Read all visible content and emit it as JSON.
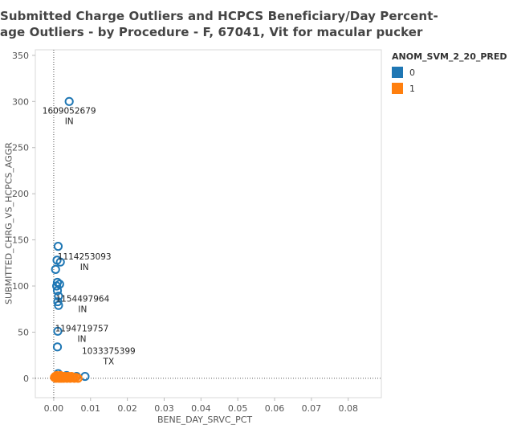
{
  "title_lines": [
    "Submitted Charge Outliers and HCPCS Beneficiary/Day Percent-",
    "age Outliers - by Procedure - F, 67041, Vit for macular pucker"
  ],
  "legend": {
    "title": "ANOM_SVM_2_20_PRED",
    "items": [
      {
        "label": "0",
        "color": "#1f77b4"
      },
      {
        "label": "1",
        "color": "#ff7f0e"
      }
    ]
  },
  "chart_data": {
    "type": "scatter",
    "xlabel": "BENE_DAY_SRVC_PCT",
    "ylabel": "SUBMITTED_CHRG_VS_HCPCS_AGGR",
    "xlim": [
      -0.005,
      0.089
    ],
    "ylim": [
      -21,
      356
    ],
    "x_ticks": [
      "0.00",
      "0.01",
      "0.02",
      "0.03",
      "0.04",
      "0.05",
      "0.06",
      "0.07",
      "0.08"
    ],
    "y_ticks": [
      "0",
      "50",
      "100",
      "150",
      "200",
      "250",
      "300",
      "350"
    ],
    "reference_lines": {
      "x": 0,
      "y": 0
    },
    "series": [
      {
        "name": "0",
        "color": "#1f77b4",
        "points": [
          {
            "x": 0.0042,
            "y": 300
          },
          {
            "x": 0.0012,
            "y": 143
          },
          {
            "x": 0.0009,
            "y": 128
          },
          {
            "x": 0.0018,
            "y": 126
          },
          {
            "x": 0.0005,
            "y": 118
          },
          {
            "x": 0.001,
            "y": 104
          },
          {
            "x": 0.0016,
            "y": 102
          },
          {
            "x": 0.0008,
            "y": 100
          },
          {
            "x": 0.001,
            "y": 95
          },
          {
            "x": 0.0013,
            "y": 89
          },
          {
            "x": 0.0011,
            "y": 83
          },
          {
            "x": 0.0013,
            "y": 79
          },
          {
            "x": 0.0011,
            "y": 51
          },
          {
            "x": 0.001,
            "y": 34
          },
          {
            "x": 0.0012,
            "y": 5
          },
          {
            "x": 0.0035,
            "y": 3
          },
          {
            "x": 0.0062,
            "y": 2
          },
          {
            "x": 0.0085,
            "y": 2
          }
        ]
      },
      {
        "name": "1",
        "color": "#ff7f0e",
        "points": [
          {
            "x": 0.0002,
            "y": 1
          },
          {
            "x": 0.0004,
            "y": 2
          },
          {
            "x": 0.0006,
            "y": 0
          },
          {
            "x": 0.0008,
            "y": 3
          },
          {
            "x": 0.001,
            "y": 1
          },
          {
            "x": 0.0012,
            "y": 2
          },
          {
            "x": 0.0014,
            "y": 0
          },
          {
            "x": 0.0016,
            "y": 1
          },
          {
            "x": 0.0018,
            "y": 3
          },
          {
            "x": 0.002,
            "y": 0
          },
          {
            "x": 0.0022,
            "y": 2
          },
          {
            "x": 0.0024,
            "y": 1
          },
          {
            "x": 0.0027,
            "y": 0
          },
          {
            "x": 0.003,
            "y": 2
          },
          {
            "x": 0.0033,
            "y": 1
          },
          {
            "x": 0.0036,
            "y": 0
          },
          {
            "x": 0.0039,
            "y": 2
          },
          {
            "x": 0.0042,
            "y": 1
          },
          {
            "x": 0.0045,
            "y": 0
          },
          {
            "x": 0.0048,
            "y": 2
          },
          {
            "x": 0.0052,
            "y": 1
          },
          {
            "x": 0.0056,
            "y": 0
          },
          {
            "x": 0.006,
            "y": 1
          },
          {
            "x": 0.0066,
            "y": 0
          }
        ]
      }
    ],
    "annotations": [
      {
        "id": "1609052679",
        "state": "IN",
        "x": 0.0042,
        "y": 300
      },
      {
        "id": "1114253093",
        "state": "IN",
        "x": 0.0018,
        "y": 126
      },
      {
        "id": "1154497964",
        "state": "IN",
        "x": 0.0013,
        "y": 83
      },
      {
        "id": "1194719757",
        "state": "IN",
        "x": 0.0011,
        "y": 51
      },
      {
        "id": "1033375399",
        "state": "TX",
        "x": 0.0062,
        "y": 2
      }
    ]
  }
}
